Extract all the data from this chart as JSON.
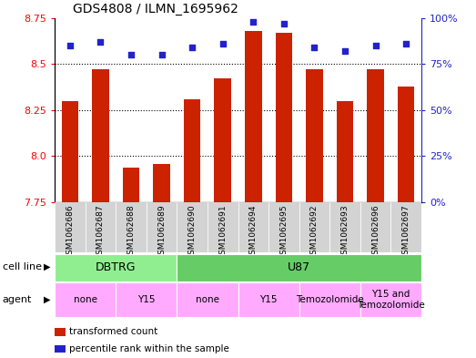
{
  "title": "GDS4808 / ILMN_1695962",
  "samples": [
    "GSM1062686",
    "GSM1062687",
    "GSM1062688",
    "GSM1062689",
    "GSM1062690",
    "GSM1062691",
    "GSM1062694",
    "GSM1062695",
    "GSM1062692",
    "GSM1062693",
    "GSM1062696",
    "GSM1062697"
  ],
  "red_values": [
    8.3,
    8.47,
    7.94,
    7.96,
    8.31,
    8.42,
    8.68,
    8.67,
    8.47,
    8.3,
    8.47,
    8.38
  ],
  "blue_values": [
    85,
    87,
    80,
    80,
    84,
    86,
    98,
    97,
    84,
    82,
    85,
    86
  ],
  "ymin": 7.75,
  "ymax": 8.75,
  "yticks": [
    7.75,
    8.0,
    8.25,
    8.5,
    8.75
  ],
  "right_yticks": [
    0,
    25,
    50,
    75,
    100
  ],
  "right_yticklabels": [
    "0%",
    "25%",
    "50%",
    "75%",
    "100%"
  ],
  "cell_line_groups": [
    {
      "label": "DBTRG",
      "start": 0,
      "end": 4,
      "color": "#90ee90"
    },
    {
      "label": "U87",
      "start": 4,
      "end": 12,
      "color": "#66cc66"
    }
  ],
  "agent_groups": [
    {
      "label": "none",
      "start": 0,
      "end": 2,
      "color": "#ffaaff"
    },
    {
      "label": "Y15",
      "start": 2,
      "end": 4,
      "color": "#ffaaff"
    },
    {
      "label": "none",
      "start": 4,
      "end": 6,
      "color": "#ffaaff"
    },
    {
      "label": "Y15",
      "start": 6,
      "end": 8,
      "color": "#ffaaff"
    },
    {
      "label": "Temozolomide",
      "start": 8,
      "end": 10,
      "color": "#ffaaff"
    },
    {
      "label": "Y15 and\nTemozolomide",
      "start": 10,
      "end": 12,
      "color": "#ffaaff"
    }
  ],
  "bar_color": "#cc2200",
  "dot_color": "#2222cc",
  "xticklabel_bg": "#d3d3d3",
  "legend_items": [
    {
      "color": "#cc2200",
      "label": "transformed count"
    },
    {
      "color": "#2222cc",
      "label": "percentile rank within the sample"
    }
  ]
}
